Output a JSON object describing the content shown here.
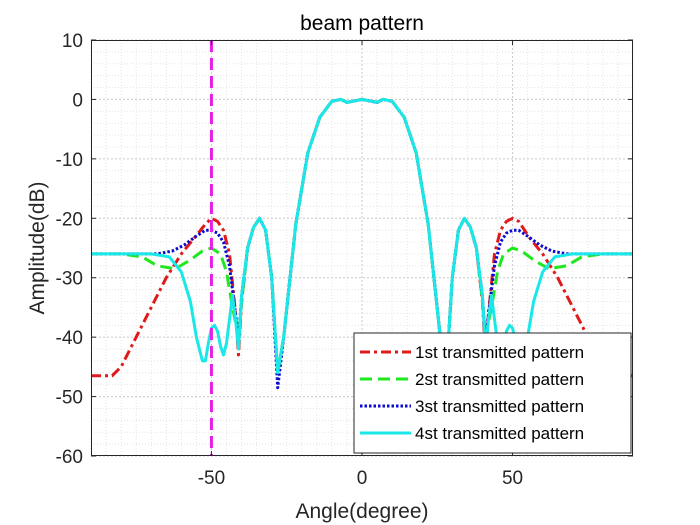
{
  "chart_data": {
    "type": "line",
    "title": "beam pattern",
    "xlabel": "Angle(degree)",
    "ylabel": "Amplitude(dB)",
    "xlim": [
      -90,
      90
    ],
    "ylim": [
      -60,
      10
    ],
    "xticks": [
      -50,
      0,
      50
    ],
    "yticks": [
      10,
      0,
      -10,
      -20,
      -30,
      -40,
      -50,
      -60
    ],
    "grid": "major and minor, dotted",
    "legend_position": "bottom-right",
    "marker_line": {
      "x": -50,
      "style": "dashed",
      "color": "#e61fe6"
    },
    "series": [
      {
        "name": "1st transmitted pattern",
        "color": "#e01a1a",
        "style": "dash-dot",
        "x": [
          -90,
          -83,
          -80,
          -75,
          -70,
          -65,
          -60,
          -56,
          -52,
          -50,
          -48,
          -46,
          -44,
          -42,
          -41,
          -40,
          -38,
          -36,
          -34,
          -32,
          -30,
          -28,
          -26,
          -22,
          -18,
          -14,
          -10,
          -7,
          -5,
          -3,
          0,
          3,
          5,
          7,
          10,
          14,
          18,
          22,
          26,
          28,
          30,
          32,
          34,
          36,
          38,
          40,
          41,
          42,
          44,
          46,
          48,
          50,
          52,
          56,
          60,
          65,
          70,
          75,
          80,
          83,
          90
        ],
        "y": [
          -46.5,
          -46.5,
          -45,
          -40,
          -35,
          -30,
          -26,
          -23.5,
          -21,
          -20,
          -20.5,
          -22,
          -26,
          -36,
          -43,
          -34,
          -25,
          -21.5,
          -20,
          -22,
          -30,
          -46,
          -40,
          -21,
          -9,
          -3,
          -0.3,
          0,
          -0.5,
          -0.3,
          0,
          -0.3,
          -0.5,
          0,
          -0.3,
          -3,
          -9,
          -21,
          -40,
          -46,
          -30,
          -22,
          -20,
          -21.5,
          -25,
          -34,
          -43,
          -36,
          -26,
          -22,
          -20.5,
          -20,
          -20.5,
          -23.5,
          -26,
          -30,
          -35,
          -40,
          -45,
          -46.5,
          -46.5
        ]
      },
      {
        "name": "2st transmitted pattern",
        "color": "#1fe81f",
        "style": "dashed",
        "x": [
          -90,
          -80,
          -73,
          -68,
          -62,
          -57,
          -53,
          -50,
          -47,
          -45,
          -43,
          -41,
          -40,
          -38,
          -36,
          -34,
          -32,
          -30,
          -28,
          -26,
          -22,
          -18,
          -14,
          -10,
          -7,
          -5,
          -3,
          0,
          3,
          5,
          7,
          10,
          14,
          18,
          22,
          26,
          28,
          30,
          32,
          34,
          36,
          38,
          40,
          41,
          43,
          45,
          47,
          50,
          53,
          57,
          62,
          68,
          73,
          80,
          90
        ],
        "y": [
          -26,
          -26,
          -26.5,
          -28,
          -28.5,
          -27,
          -25.5,
          -25,
          -26,
          -29,
          -35,
          -40,
          -34,
          -25,
          -21.5,
          -20,
          -22,
          -30,
          -46,
          -40,
          -21,
          -9,
          -3,
          -0.3,
          0,
          -0.5,
          -0.3,
          0,
          -0.3,
          -0.5,
          0,
          -0.3,
          -3,
          -9,
          -21,
          -40,
          -46,
          -30,
          -22,
          -20,
          -21.5,
          -25,
          -34,
          -40,
          -35,
          -29,
          -26,
          -25,
          -25.5,
          -27,
          -28.5,
          -28,
          -26.5,
          -26,
          -26
        ]
      },
      {
        "name": "3st transmitted pattern",
        "color": "#0a0ad2",
        "style": "dotted",
        "x": [
          -90,
          -75,
          -68,
          -63,
          -59,
          -55,
          -52,
          -50,
          -48,
          -46,
          -44,
          -42,
          -41,
          -40,
          -38,
          -36,
          -34,
          -32,
          -30,
          -28,
          -26,
          -22,
          -18,
          -14,
          -10,
          -7,
          -5,
          -3,
          0,
          3,
          5,
          7,
          10,
          14,
          18,
          22,
          26,
          28,
          30,
          32,
          34,
          36,
          38,
          40,
          41,
          42,
          44,
          46,
          48,
          50,
          52,
          55,
          59,
          63,
          68,
          75,
          90
        ],
        "y": [
          -26,
          -26,
          -26,
          -25.5,
          -24.5,
          -23,
          -22,
          -22,
          -22.5,
          -24,
          -28,
          -36,
          -41,
          -33,
          -25,
          -21.5,
          -20,
          -22,
          -30,
          -48.5,
          -40,
          -21,
          -9,
          -3,
          -0.3,
          0,
          -0.5,
          -0.3,
          0,
          -0.3,
          -0.5,
          0,
          -0.3,
          -3,
          -9,
          -21,
          -40,
          -46,
          -30,
          -22,
          -20,
          -21.5,
          -25,
          -33,
          -41,
          -36,
          -28,
          -24,
          -22.5,
          -22,
          -22,
          -23,
          -24.5,
          -25.5,
          -26,
          -26,
          -26
        ]
      },
      {
        "name": "4st transmitted pattern",
        "color": "#1ae8e8",
        "style": "solid",
        "x": [
          -90,
          -70,
          -64,
          -60,
          -57,
          -55,
          -53,
          -52,
          -51,
          -50,
          -49,
          -48,
          -47,
          -46,
          -45,
          -44,
          -43,
          -42,
          -41,
          -40,
          -38,
          -36,
          -34,
          -32,
          -30,
          -28,
          -26,
          -22,
          -18,
          -14,
          -10,
          -7,
          -5,
          -3,
          0,
          3,
          5,
          7,
          10,
          14,
          18,
          22,
          26,
          28,
          30,
          32,
          34,
          36,
          38,
          40,
          41,
          42,
          43,
          44,
          45,
          46,
          47,
          48,
          49,
          50,
          51,
          52,
          53,
          55,
          57,
          60,
          64,
          70,
          90
        ],
        "y": [
          -26,
          -26,
          -26.5,
          -29,
          -34,
          -40,
          -44,
          -44,
          -41,
          -38.5,
          -38,
          -39,
          -41.5,
          -43,
          -41,
          -37,
          -33,
          -37,
          -42,
          -33,
          -25,
          -21.5,
          -20,
          -22,
          -30,
          -46,
          -40,
          -21,
          -9,
          -3,
          -0.3,
          0,
          -0.5,
          -0.3,
          0,
          -0.3,
          -0.5,
          0,
          -0.3,
          -3,
          -9,
          -21,
          -40,
          -46,
          -30,
          -22,
          -20,
          -21.5,
          -25,
          -33,
          -42,
          -37,
          -33,
          -37,
          -41,
          -43,
          -41.5,
          -39,
          -38,
          -38.5,
          -41,
          -44,
          -44,
          -40,
          -34,
          -29,
          -26.5,
          -26,
          -26
        ]
      }
    ]
  }
}
